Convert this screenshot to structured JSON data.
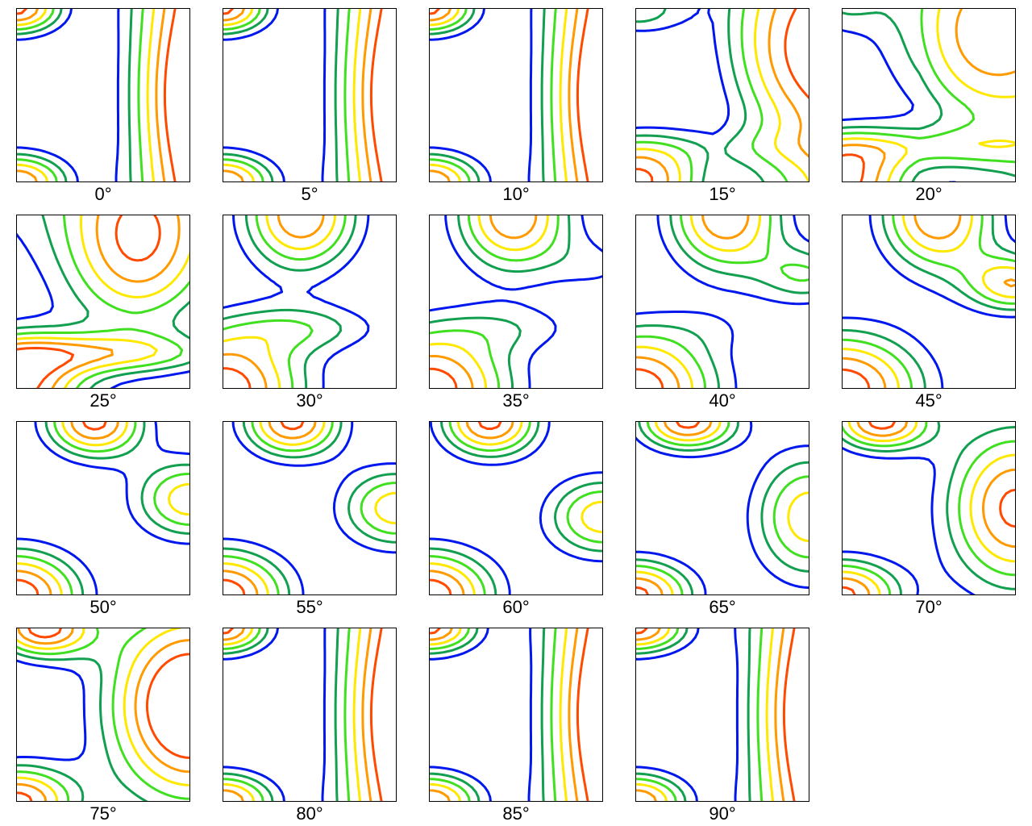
{
  "chart_data": {
    "type": "contour",
    "panel_labels": [
      "0°",
      "5°",
      "10°",
      "15°",
      "20°",
      "25°",
      "30°",
      "35°",
      "40°",
      "45°",
      "50°",
      "55°",
      "60°",
      "65°",
      "70°",
      "75°",
      "80°",
      "85°",
      "90°"
    ],
    "level_colors": [
      "#0018ee",
      "#12a050",
      "#40e020",
      "#ffe800",
      "#ff9a00",
      "#ff4a00"
    ],
    "grid": false,
    "legend": "none"
  }
}
